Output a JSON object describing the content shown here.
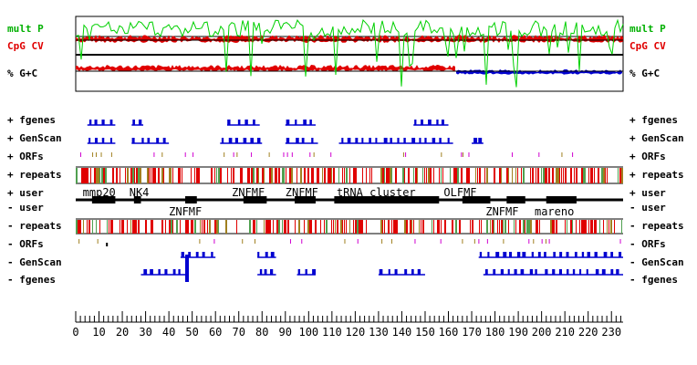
{
  "tracks_left": [
    {
      "id": "multp",
      "text": "mult P",
      "color": "#00b000"
    },
    {
      "id": "cpg",
      "text": "CpG CV",
      "color": "#e00000"
    },
    {
      "id": "gc",
      "text": "% G+C",
      "color": "#000000"
    },
    {
      "id": "fgenes_p",
      "text": "+ fgenes",
      "color": "#000000"
    },
    {
      "id": "genscan_p",
      "text": "+ GenScan",
      "color": "#000000"
    },
    {
      "id": "orfs_p",
      "text": "+ ORFs",
      "color": "#000000"
    },
    {
      "id": "repeats_p",
      "text": "+ repeats",
      "color": "#000000"
    },
    {
      "id": "user_p",
      "text": "+ user",
      "color": "#000000"
    },
    {
      "id": "user_m",
      "text": "- user",
      "color": "#000000"
    },
    {
      "id": "repeats_m",
      "text": "- repeats",
      "color": "#000000"
    },
    {
      "id": "orfs_m",
      "text": "- ORFs",
      "color": "#000000"
    },
    {
      "id": "genscan_m",
      "text": "- GenScan",
      "color": "#000000"
    },
    {
      "id": "fgenes_m",
      "text": "- fgenes",
      "color": "#000000"
    }
  ],
  "tracks_right": [
    {
      "id": "multp",
      "text": "mult P",
      "color": "#00b000"
    },
    {
      "id": "cpg",
      "text": "CpG CV",
      "color": "#e00000"
    },
    {
      "id": "gc",
      "text": "% G+C",
      "color": "#000000"
    },
    {
      "id": "fgenes_p",
      "text": "+ fgenes",
      "color": "#000000"
    },
    {
      "id": "genscan_p",
      "text": "+ GenScan",
      "color": "#000000"
    },
    {
      "id": "orfs_p",
      "text": "+ ORFs",
      "color": "#000000"
    },
    {
      "id": "repeats_p",
      "text": "+ repeats",
      "color": "#000000"
    },
    {
      "id": "user_p",
      "text": "+ user",
      "color": "#000000"
    },
    {
      "id": "user_m",
      "text": "- user",
      "color": "#000000"
    },
    {
      "id": "repeats_m",
      "text": "- repeats",
      "color": "#000000"
    },
    {
      "id": "orfs_m",
      "text": "- ORFs",
      "color": "#000000"
    },
    {
      "id": "genscan_m",
      "text": "- GenScan",
      "color": "#000000"
    },
    {
      "id": "fgenes_m",
      "text": "- fgenes",
      "color": "#000000"
    }
  ],
  "user_annotations_top": [
    "mmp20",
    "NK4",
    "ZNFMF",
    "ZNFMF",
    "tRNA cluster",
    "OLFMF"
  ],
  "user_annotations_bottom": [
    "ZNFMF",
    "ZNFMF",
    "mareno"
  ],
  "axis": {
    "min": 0,
    "max": 235,
    "major_step": 10,
    "ticks": [
      "0",
      "10",
      "20",
      "30",
      "40",
      "50",
      "60",
      "70",
      "80",
      "90",
      "100",
      "110",
      "120",
      "130",
      "140",
      "150",
      "160",
      "170",
      "180",
      "190",
      "200",
      "210",
      "220",
      "230"
    ]
  },
  "colors": {
    "multp": "#00d000",
    "cpg": "#e00000",
    "gc_low": "#0000d0",
    "gene": "#0000d0",
    "repeat_red": "#e00000",
    "repeat_green": "#50a050",
    "repeat_olive": "#a08020",
    "orf": "#d000d0",
    "user_block": "#000000"
  }
}
